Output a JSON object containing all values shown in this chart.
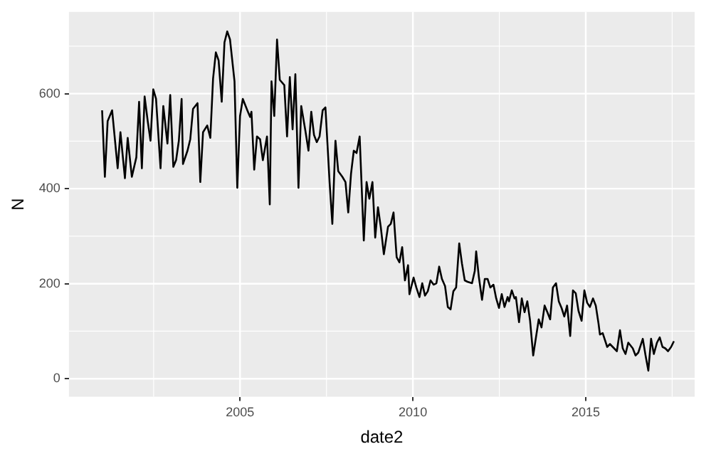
{
  "chart_data": {
    "type": "line",
    "xlabel": "date2",
    "ylabel": "N",
    "grid": true,
    "legend": false,
    "marker": "none",
    "line_style": "solid",
    "xlim": [
      2000.05,
      2018.15
    ],
    "ylim": [
      -38,
      772
    ],
    "xticks": [
      {
        "value": 2002.5,
        "label": null
      },
      2005,
      {
        "value": 2007.5,
        "label": null
      },
      2010,
      {
        "value": 2012.5,
        "label": null
      },
      2015,
      {
        "value": 2017.5,
        "label": null
      }
    ],
    "yticks": [
      0,
      {
        "value": 100,
        "label": null
      },
      200,
      {
        "value": 300,
        "label": null
      },
      400,
      {
        "value": 500,
        "label": null
      },
      600,
      {
        "value": 700,
        "label": null
      }
    ],
    "series": [
      {
        "color": "#000000",
        "x": [
          2001.01,
          2001.09,
          2001.17,
          2001.3,
          2001.46,
          2001.54,
          2001.67,
          2001.75,
          2001.87,
          2002.0,
          2002.08,
          2002.16,
          2002.24,
          2002.33,
          2002.41,
          2002.49,
          2002.57,
          2002.7,
          2002.78,
          2002.9,
          2002.98,
          2003.07,
          2003.15,
          2003.23,
          2003.31,
          2003.35,
          2003.48,
          2003.56,
          2003.64,
          2003.77,
          2003.85,
          2003.93,
          2004.05,
          2004.14,
          2004.22,
          2004.3,
          2004.38,
          2004.47,
          2004.55,
          2004.63,
          2004.71,
          2004.84,
          2004.92,
          2005.0,
          2005.08,
          2005.21,
          2005.29,
          2005.33,
          2005.41,
          2005.49,
          2005.58,
          2005.66,
          2005.78,
          2005.86,
          2005.91,
          2005.99,
          2006.07,
          2006.15,
          2006.28,
          2006.36,
          2006.44,
          2006.52,
          2006.6,
          2006.69,
          2006.77,
          2006.89,
          2006.98,
          2007.06,
          2007.14,
          2007.22,
          2007.3,
          2007.39,
          2007.47,
          2007.59,
          2007.67,
          2007.76,
          2007.84,
          2007.96,
          2008.05,
          2008.13,
          2008.21,
          2008.29,
          2008.37,
          2008.46,
          2008.58,
          2008.66,
          2008.74,
          2008.83,
          2008.91,
          2008.99,
          2009.07,
          2009.16,
          2009.28,
          2009.36,
          2009.44,
          2009.53,
          2009.61,
          2009.69,
          2009.77,
          2009.86,
          2009.9,
          2010.02,
          2010.1,
          2010.19,
          2010.27,
          2010.35,
          2010.43,
          2010.51,
          2010.6,
          2010.68,
          2010.76,
          2010.84,
          2010.93,
          2011.01,
          2011.09,
          2011.17,
          2011.25,
          2011.34,
          2011.42,
          2011.5,
          2011.58,
          2011.71,
          2011.79,
          2011.83,
          2011.91,
          2012.0,
          2012.08,
          2012.16,
          2012.24,
          2012.33,
          2012.41,
          2012.49,
          2012.57,
          2012.65,
          2012.74,
          2012.78,
          2012.86,
          2012.94,
          2012.98,
          2013.07,
          2013.15,
          2013.23,
          2013.31,
          2013.39,
          2013.48,
          2013.56,
          2013.64,
          2013.72,
          2013.81,
          2013.89,
          2013.97,
          2014.05,
          2014.14,
          2014.22,
          2014.3,
          2014.38,
          2014.46,
          2014.55,
          2014.63,
          2014.71,
          2014.79,
          2014.88,
          2014.96,
          2015.04,
          2015.12,
          2015.21,
          2015.29,
          2015.37,
          2015.41,
          2015.49,
          2015.62,
          2015.7,
          2015.78,
          2015.9,
          2015.99,
          2016.07,
          2016.15,
          2016.23,
          2016.36,
          2016.44,
          2016.52,
          2016.65,
          2016.73,
          2016.81,
          2016.89,
          2016.97,
          2017.06,
          2017.14,
          2017.22,
          2017.3,
          2017.38,
          2017.47,
          2017.55
        ],
        "values": [
          565,
          425,
          542,
          565,
          443,
          519,
          422,
          507,
          425,
          466,
          583,
          443,
          594,
          542,
          501,
          609,
          589,
          443,
          574,
          495,
          597,
          446,
          460,
          501,
          589,
          452,
          480,
          504,
          568,
          580,
          414,
          519,
          533,
          507,
          632,
          687,
          670,
          583,
          708,
          731,
          714,
          626,
          402,
          553,
          589,
          565,
          551,
          562,
          440,
          510,
          504,
          460,
          510,
          367,
          626,
          553,
          714,
          629,
          618,
          510,
          635,
          525,
          641,
          402,
          574,
          522,
          480,
          562,
          513,
          498,
          510,
          565,
          571,
          414,
          326,
          501,
          437,
          425,
          414,
          350,
          431,
          480,
          475,
          510,
          291,
          414,
          379,
          414,
          297,
          361,
          320,
          262,
          320,
          326,
          350,
          256,
          245,
          277,
          207,
          239,
          178,
          213,
          192,
          172,
          201,
          175,
          184,
          207,
          198,
          201,
          236,
          210,
          195,
          151,
          146,
          184,
          192,
          285,
          242,
          207,
          204,
          201,
          227,
          268,
          213,
          166,
          210,
          210,
          192,
          198,
          169,
          149,
          178,
          151,
          172,
          163,
          186,
          169,
          172,
          119,
          169,
          140,
          163,
          122,
          49,
          87,
          125,
          108,
          154,
          140,
          125,
          192,
          201,
          163,
          149,
          131,
          154,
          90,
          186,
          180,
          143,
          122,
          186,
          160,
          151,
          169,
          154,
          116,
          93,
          96,
          67,
          73,
          67,
          58,
          102,
          64,
          52,
          76,
          64,
          49,
          55,
          84,
          49,
          17,
          84,
          52,
          76,
          87,
          67,
          64,
          58,
          67,
          79
        ]
      }
    ]
  }
}
